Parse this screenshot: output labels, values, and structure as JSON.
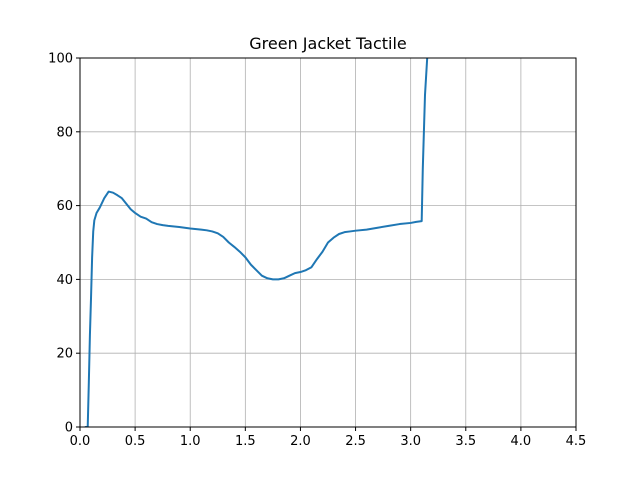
{
  "chart_data": {
    "type": "line",
    "title": "Green Jacket Tactile",
    "xlabel": "",
    "ylabel": "",
    "xlim": [
      0,
      4.5
    ],
    "ylim": [
      0,
      100
    ],
    "xticks": [
      0.0,
      0.5,
      1.0,
      1.5,
      2.0,
      2.5,
      3.0,
      3.5,
      4.0,
      4.5
    ],
    "xtick_labels": [
      "0.0",
      "0.5",
      "1.0",
      "1.5",
      "2.0",
      "2.5",
      "3.0",
      "3.5",
      "4.0",
      "4.5"
    ],
    "yticks": [
      0,
      20,
      40,
      60,
      80,
      100
    ],
    "ytick_labels": [
      "0",
      "20",
      "40",
      "60",
      "80",
      "100"
    ],
    "grid": true,
    "series": [
      {
        "color": "#1f77b4",
        "x": [
          0.05,
          0.07,
          0.08,
          0.09,
          0.1,
          0.11,
          0.12,
          0.13,
          0.15,
          0.18,
          0.22,
          0.26,
          0.3,
          0.34,
          0.38,
          0.42,
          0.46,
          0.5,
          0.55,
          0.6,
          0.65,
          0.7,
          0.75,
          0.8,
          0.9,
          1.0,
          1.1,
          1.15,
          1.2,
          1.25,
          1.3,
          1.35,
          1.4,
          1.45,
          1.5,
          1.55,
          1.6,
          1.65,
          1.7,
          1.75,
          1.8,
          1.85,
          1.9,
          1.95,
          2.0,
          2.05,
          2.1,
          2.15,
          2.2,
          2.25,
          2.3,
          2.35,
          2.4,
          2.45,
          2.5,
          2.6,
          2.7,
          2.8,
          2.9,
          3.0,
          3.05,
          3.1,
          3.11,
          3.13,
          3.15,
          3.16
        ],
        "y": [
          0,
          0,
          12,
          25,
          35,
          46,
          53,
          56,
          58,
          59.5,
          62,
          63.8,
          63.5,
          62.8,
          62,
          60.5,
          59,
          58,
          57,
          56.5,
          55.5,
          55,
          54.7,
          54.5,
          54.2,
          53.8,
          53.5,
          53.3,
          53,
          52.5,
          51.5,
          50,
          48.8,
          47.5,
          46,
          44,
          42.5,
          41,
          40.3,
          40,
          40,
          40.3,
          41,
          41.7,
          42,
          42.5,
          43.3,
          45.5,
          47.5,
          50,
          51.3,
          52.3,
          52.8,
          53,
          53.2,
          53.5,
          54,
          54.5,
          55,
          55.3,
          55.6,
          55.8,
          70,
          90,
          100,
          103
        ]
      }
    ]
  }
}
